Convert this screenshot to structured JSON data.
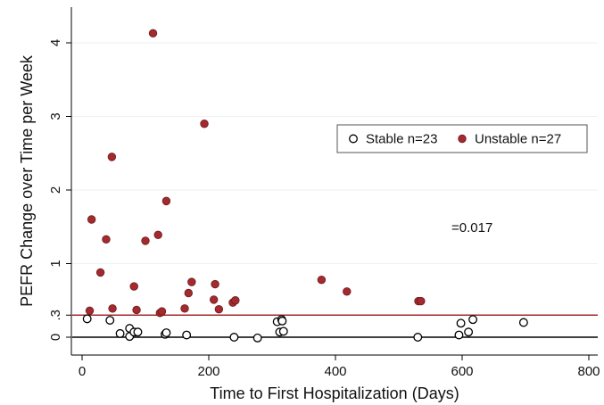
{
  "chart_data": {
    "type": "scatter",
    "xlabel": "Time to First Hospitalization (Days)",
    "ylabel": "PEFR Change over Time per Week",
    "xlim": [
      -10,
      800
    ],
    "ylim": [
      -0.15,
      4.35
    ],
    "xticks": [
      {
        "value": 0,
        "label": "0"
      },
      {
        "value": 200,
        "label": "200"
      },
      {
        "value": 400,
        "label": "400"
      },
      {
        "value": 600,
        "label": "600"
      },
      {
        "value": 800,
        "label": "800"
      }
    ],
    "yticks": [
      {
        "value": 0,
        "label": "0"
      },
      {
        "value": 0.3,
        "label": ".3"
      },
      {
        "value": 1,
        "label": "1"
      },
      {
        "value": 2,
        "label": "2"
      },
      {
        "value": 3,
        "label": "3"
      },
      {
        "value": 4,
        "label": "4"
      }
    ],
    "reference_lines": [
      {
        "y": 0,
        "color": "#000000"
      },
      {
        "y": 0.3,
        "color": "#a32a2e"
      }
    ],
    "annotation": "=0.017",
    "grid": true,
    "legend_position": "top-right",
    "series": [
      {
        "name": "Stable n=23",
        "marker": "hollow-circle",
        "color": "#000000",
        "points": [
          [
            8,
            0.25
          ],
          [
            44,
            0.23
          ],
          [
            60,
            0.05
          ],
          [
            75,
            0.12
          ],
          [
            75,
            0.01
          ],
          [
            82,
            0.07
          ],
          [
            88,
            0.07
          ],
          [
            131,
            0.04
          ],
          [
            133,
            0.06
          ],
          [
            165,
            0.03
          ],
          [
            240,
            0.0
          ],
          [
            277,
            -0.01
          ],
          [
            308,
            0.21
          ],
          [
            312,
            0.07
          ],
          [
            315,
            0.24
          ],
          [
            316,
            0.22
          ],
          [
            318,
            0.08
          ],
          [
            530,
            0.0
          ],
          [
            595,
            0.03
          ],
          [
            598,
            0.19
          ],
          [
            610,
            0.07
          ],
          [
            617,
            0.24
          ],
          [
            697,
            0.2
          ]
        ]
      },
      {
        "name": "Unstable n=27",
        "marker": "filled-circle",
        "color": "#a32a2e",
        "points": [
          [
            12,
            0.36
          ],
          [
            15,
            1.6
          ],
          [
            29,
            0.88
          ],
          [
            38,
            1.33
          ],
          [
            47,
            2.45
          ],
          [
            48,
            0.39
          ],
          [
            82,
            0.69
          ],
          [
            86,
            0.37
          ],
          [
            100,
            1.31
          ],
          [
            112,
            4.13
          ],
          [
            120,
            1.39
          ],
          [
            123,
            0.33
          ],
          [
            126,
            0.35
          ],
          [
            133,
            1.85
          ],
          [
            162,
            0.39
          ],
          [
            168,
            0.6
          ],
          [
            173,
            0.75
          ],
          [
            193,
            2.9
          ],
          [
            208,
            0.51
          ],
          [
            210,
            0.72
          ],
          [
            216,
            0.38
          ],
          [
            238,
            0.47
          ],
          [
            242,
            0.5
          ],
          [
            378,
            0.78
          ],
          [
            418,
            0.62
          ],
          [
            531,
            0.49
          ],
          [
            535,
            0.49
          ]
        ]
      }
    ]
  }
}
